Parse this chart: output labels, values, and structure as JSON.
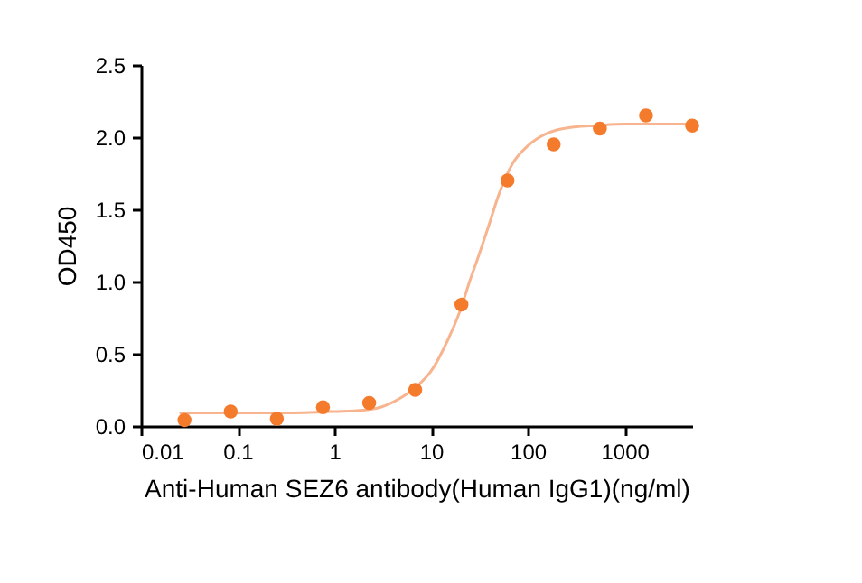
{
  "chart_data": {
    "type": "scatter",
    "xlabel": "Anti-Human SEZ6 antibody(Human IgG1)(ng/ml)",
    "ylabel": "OD450",
    "log": "x",
    "grid": false,
    "marker": "circle",
    "xlim": [
      0.01,
      5000
    ],
    "xticks": [
      0.01,
      0.1,
      1,
      10,
      100,
      1000
    ],
    "ylim": [
      0,
      2.5
    ],
    "yticks": [
      {
        "value": 0,
        "label": "0.0"
      },
      {
        "value": 0.5,
        "label": "0.5"
      },
      {
        "value": 1,
        "label": "1.0"
      },
      {
        "value": 1.5,
        "label": "1.5"
      },
      {
        "value": 2,
        "label": "2.0"
      },
      {
        "value": 2.5,
        "label": "2.5"
      }
    ],
    "series": [
      {
        "type": "line",
        "marker": "none",
        "line_style": "solid",
        "color": "#f7b48e",
        "x": [
          0.025,
          0.1,
          0.3,
          1,
          2,
          3,
          5,
          7,
          10,
          15,
          20,
          25,
          30,
          40,
          50,
          70,
          100,
          150,
          200,
          300,
          500,
          1000,
          2000,
          5000
        ],
        "values": [
          0.09,
          0.09,
          0.09,
          0.1,
          0.11,
          0.13,
          0.2,
          0.27,
          0.38,
          0.6,
          0.8,
          1.0,
          1.15,
          1.4,
          1.6,
          1.82,
          1.94,
          2.02,
          2.05,
          2.07,
          2.08,
          2.09,
          2.09,
          2.09
        ]
      },
      {
        "color": "#f47a2c",
        "x": [
          0.0282,
          0.0847,
          0.254,
          0.762,
          2.29,
          6.86,
          20.6,
          61.7,
          185,
          556,
          1667,
          5000
        ],
        "values": [
          0.04,
          0.1,
          0.05,
          0.13,
          0.16,
          0.25,
          0.84,
          1.7,
          1.95,
          2.06,
          2.15,
          2.08
        ]
      }
    ]
  }
}
